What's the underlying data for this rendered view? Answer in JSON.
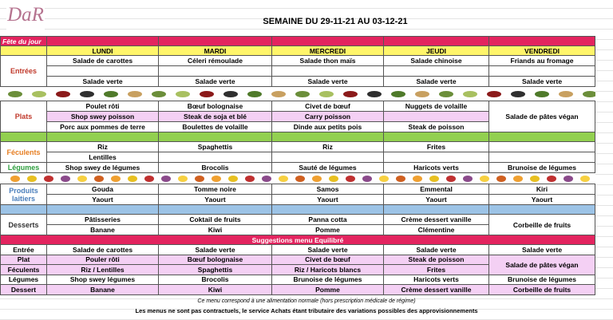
{
  "header": {
    "logo": "DaR",
    "title": "SEMAINE DU 29-11-21 AU 03-12-21"
  },
  "fete_du_jour": "Fête du jour",
  "days": [
    "LUNDI",
    "MARDI",
    "MERCREDI",
    "JEUDI",
    "VENDREDI"
  ],
  "sections": [
    {
      "label": "Entrées",
      "rows": [
        [
          "Salade de carottes",
          "Céleri rémoulade",
          "Salade thon maïs",
          "Salade chinoise",
          "Friands au fromage"
        ],
        [
          null,
          null,
          null,
          null,
          null
        ],
        [
          "Salade verte",
          "Salade verte",
          "Salade verte",
          "Salade verte",
          "Salade verte"
        ]
      ]
    },
    {
      "label": "Plats",
      "rows": [
        [
          "Poulet rôti",
          "Bœuf bolognaise",
          "Civet de bœuf",
          "Nuggets de volaille",
          "Salade de pâtes végan"
        ],
        [
          "Shop swey poisson",
          "Steak de soja et blé",
          "Carry poisson",
          null
        ],
        [
          "Porc aux pommes de terre",
          "Boulettes de volaille",
          "Dinde aux petits pois",
          "Steak de poisson"
        ]
      ]
    },
    {
      "label": "Féculents",
      "rows": [
        [
          "Riz",
          "Spaghettis",
          "Riz",
          "Frites",
          null
        ],
        [
          "Lentilles",
          null,
          null,
          null,
          null
        ]
      ]
    },
    {
      "label": "Légumes",
      "rows": [
        [
          "Shop swey de légumes",
          "Brocolis",
          "Sauté de légumes",
          "Haricots verts",
          "Brunoise de légumes"
        ]
      ]
    },
    {
      "label": "Produits laitiers",
      "rows": [
        [
          "Gouda",
          "Tomme noire",
          "Samos",
          "Emmental",
          "Kiri"
        ],
        [
          "Yaourt",
          "Yaourt",
          "Yaourt",
          "Yaourt",
          "Yaourt"
        ]
      ]
    },
    {
      "label": "Desserts",
      "rows": [
        [
          "Pâtisseries",
          "Coktail de fruits",
          "Panna cotta",
          "Crème dessert vanille",
          "Corbeille de fruits"
        ],
        [
          "Banane",
          "Kiwi",
          "Pomme",
          "Clémentine"
        ]
      ]
    }
  ],
  "suggestions": {
    "title": "Suggestions menu Equilibré",
    "rows": [
      {
        "label": "Entrée",
        "items": [
          "Salade de carottes",
          "Salade verte",
          "Salade verte",
          "Salade verte",
          "Salade verte"
        ]
      },
      {
        "label": "Plat",
        "items": [
          "Pouler rôti",
          "Bœuf bolognaise",
          "Civet de bœuf",
          "Steak de poisson",
          "Salade de pâtes végan"
        ]
      },
      {
        "label": "Féculents",
        "items": [
          "Riz / Lentilles",
          "Spaghettis",
          "Riz / Haricots blancs",
          "Frites"
        ]
      },
      {
        "label": "Légumes",
        "items": [
          "Shop swey légumes",
          "Brocolis",
          "Brunoise de légumes",
          "Haricots verts",
          "Brunoise de légumes"
        ]
      },
      {
        "label": "Dessert",
        "items": [
          "Banane",
          "Kiwi",
          "Pomme",
          "Crème dessert vanille",
          "Corbeille de fruits"
        ]
      }
    ]
  },
  "footer": [
    "Ce menu correspond à une alimentation normale (hors prescription médicale de régime)",
    "Les menus ne sont pas contractuels, le service Achats étant tributaire des variations possibles des approvisionnements"
  ]
}
